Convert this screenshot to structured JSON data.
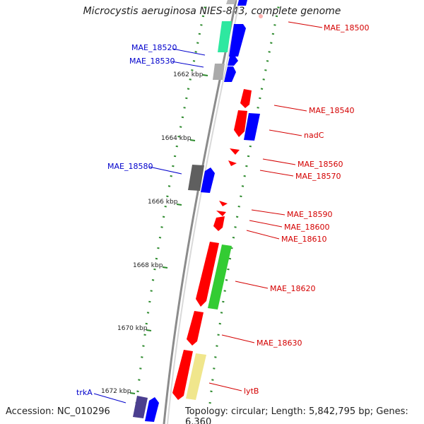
{
  "header": {
    "title": "Microcystis aeruginosa NIES-843, complete genome"
  },
  "footer": {
    "accession": "Accession: NC_010296",
    "summary": "Topology: circular; Length: 5,842,795 bp; Genes: 6,360"
  },
  "colors": {
    "forward_label": "#d40000",
    "reverse_label": "#0000cc",
    "backbone": "#8c8c8c",
    "tick": "#2e8b2e",
    "cds_red": "#ff0000",
    "cds_blue": "#0000ff",
    "cds_green": "#33cc33",
    "cds_teal": "#2ee8a0",
    "cds_gray": "#aaaaaa",
    "cds_dark": "#5f5f5f",
    "cds_khaki": "#f0e68c",
    "cds_indigo": "#4b3f8f"
  },
  "scale_labels": [
    "1662 kbp",
    "1664 kbp",
    "1666 kbp",
    "1668 kbp",
    "1670 kbp",
    "1672 kbp"
  ],
  "labels": [
    {
      "text": "MAE_18500",
      "strand": "forward"
    },
    {
      "text": "MAE_18520",
      "strand": "reverse"
    },
    {
      "text": "MAE_18530",
      "strand": "reverse"
    },
    {
      "text": "MAE_18540",
      "strand": "forward"
    },
    {
      "text": "nadC",
      "strand": "forward"
    },
    {
      "text": "MAE_18560",
      "strand": "forward"
    },
    {
      "text": "MAE_18570",
      "strand": "forward"
    },
    {
      "text": "MAE_18580",
      "strand": "reverse"
    },
    {
      "text": "MAE_18590",
      "strand": "forward"
    },
    {
      "text": "MAE_18600",
      "strand": "forward"
    },
    {
      "text": "MAE_18610",
      "strand": "forward"
    },
    {
      "text": "MAE_18620",
      "strand": "forward"
    },
    {
      "text": "MAE_18630",
      "strand": "forward"
    },
    {
      "text": "lytB",
      "strand": "forward"
    },
    {
      "text": "trkA",
      "strand": "reverse"
    }
  ]
}
